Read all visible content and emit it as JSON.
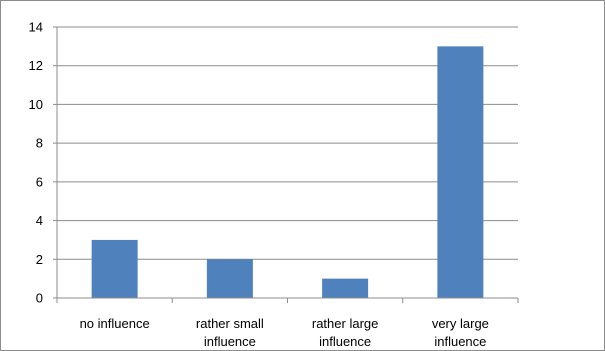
{
  "chart_data": {
    "type": "bar",
    "categories": [
      [
        "no influence"
      ],
      [
        "rather small",
        "influence"
      ],
      [
        "rather large",
        "influence"
      ],
      [
        "very large",
        "influence"
      ]
    ],
    "values": [
      3,
      2,
      1,
      13
    ],
    "ylim": [
      0,
      14
    ],
    "yticks": [
      0,
      2,
      4,
      6,
      8,
      10,
      12,
      14
    ],
    "grid": true,
    "legend": "none",
    "bar_color": "#4F81BD",
    "grid_color": "#8C8C8C",
    "axis_color": "#8C8C8C"
  }
}
